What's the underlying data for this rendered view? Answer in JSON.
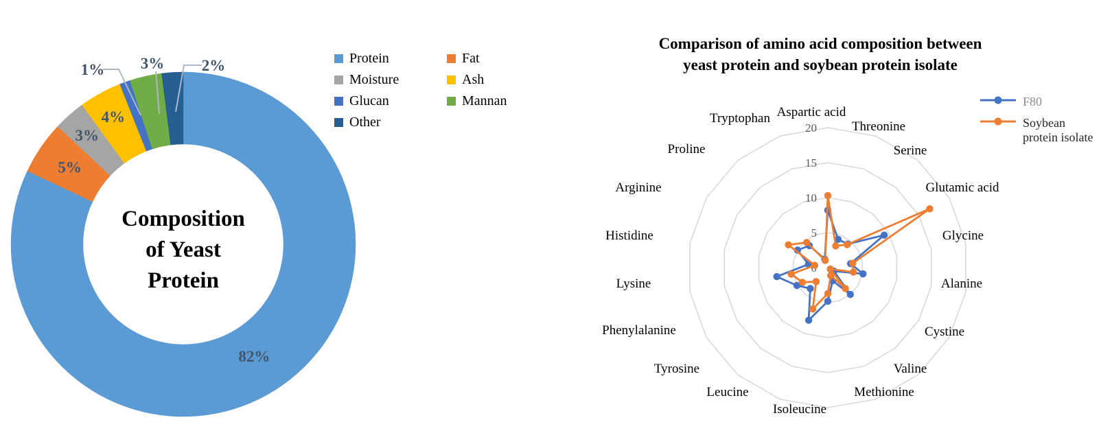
{
  "page": {
    "background": "#FFFFFF"
  },
  "chart_data": [
    {
      "id": "yeast-composition-donut",
      "type": "pie",
      "subtype": "donut",
      "title": "Composition of Yeast Protein",
      "title_lines": [
        "Composition",
        "of Yeast",
        "Protein"
      ],
      "categories": [
        "Protein",
        "Fat",
        "Moisture",
        "Ash",
        "Glucan",
        "Mannan",
        "Other"
      ],
      "values": [
        82,
        5,
        3,
        4,
        1,
        3,
        2
      ],
      "percent_labels": [
        "82%",
        "5%",
        "3%",
        "4%",
        "1%",
        "3%",
        "2%"
      ],
      "colors": [
        "#5B9BD5",
        "#ED7D31",
        "#A5A5A5",
        "#FFC000",
        "#4472C4",
        "#70AD47",
        "#255E91"
      ],
      "percent_label_color": "#44546A",
      "leader_line_color": "#AEB7C6",
      "legend_position": "right",
      "legend_columns": [
        [
          0,
          2,
          4,
          6
        ],
        [
          1,
          3,
          5
        ]
      ]
    },
    {
      "id": "amino-acid-radar",
      "type": "radar",
      "title": "Comparison of amino acid composition between yeast protein and soybean protein isolate",
      "title_lines": [
        "Comparison of amino acid composition between",
        "yeast protein and soybean protein isolate"
      ],
      "categories": [
        "Aspartic acid",
        "Threonine",
        "Serine",
        "Glutamic acid",
        "Glycine",
        "Alanine",
        "Cystine",
        "Valine",
        "Methionine",
        "Isoleucine",
        "Leucine",
        "Tyrosine",
        "Phenylalanine",
        "Lysine",
        "Histidine",
        "Arginine",
        "Proline",
        "Tryptophan"
      ],
      "rmax": 20,
      "ticks": [
        0,
        5,
        10,
        15,
        20
      ],
      "grid": "rings-only",
      "grid_color": "#D9D9D9",
      "tick_label_color": "#595959",
      "axis_label_color": "#000000",
      "series": [
        {
          "name": "F80",
          "color": "#4472C4",
          "values": [
            8.2,
            4.3,
            4.4,
            9.3,
            3.3,
            5.1,
            1.0,
            5.0,
            2.0,
            4.8,
            8.0,
            3.9,
            5.1,
            7.4,
            2.8,
            5.0,
            4.1,
            1.3
          ]
        },
        {
          "name": "Soybean protein isolate",
          "color": "#ED7D31",
          "values": [
            10.3,
            3.3,
            4.3,
            16.8,
            3.6,
            3.7,
            0.4,
            3.9,
            1.2,
            3.7,
            6.3,
            2.6,
            4.2,
            5.3,
            1.9,
            6.5,
            4.7,
            1.1
          ]
        }
      ],
      "legend": [
        {
          "label_lines": [
            "F80"
          ],
          "color": "#4472C4",
          "text_color": "#8C8C8C"
        },
        {
          "label_lines": [
            "Soybean",
            "protein isolate"
          ],
          "color": "#ED7D31",
          "text_color": "#262626"
        }
      ],
      "legend_position": "top-right"
    }
  ]
}
